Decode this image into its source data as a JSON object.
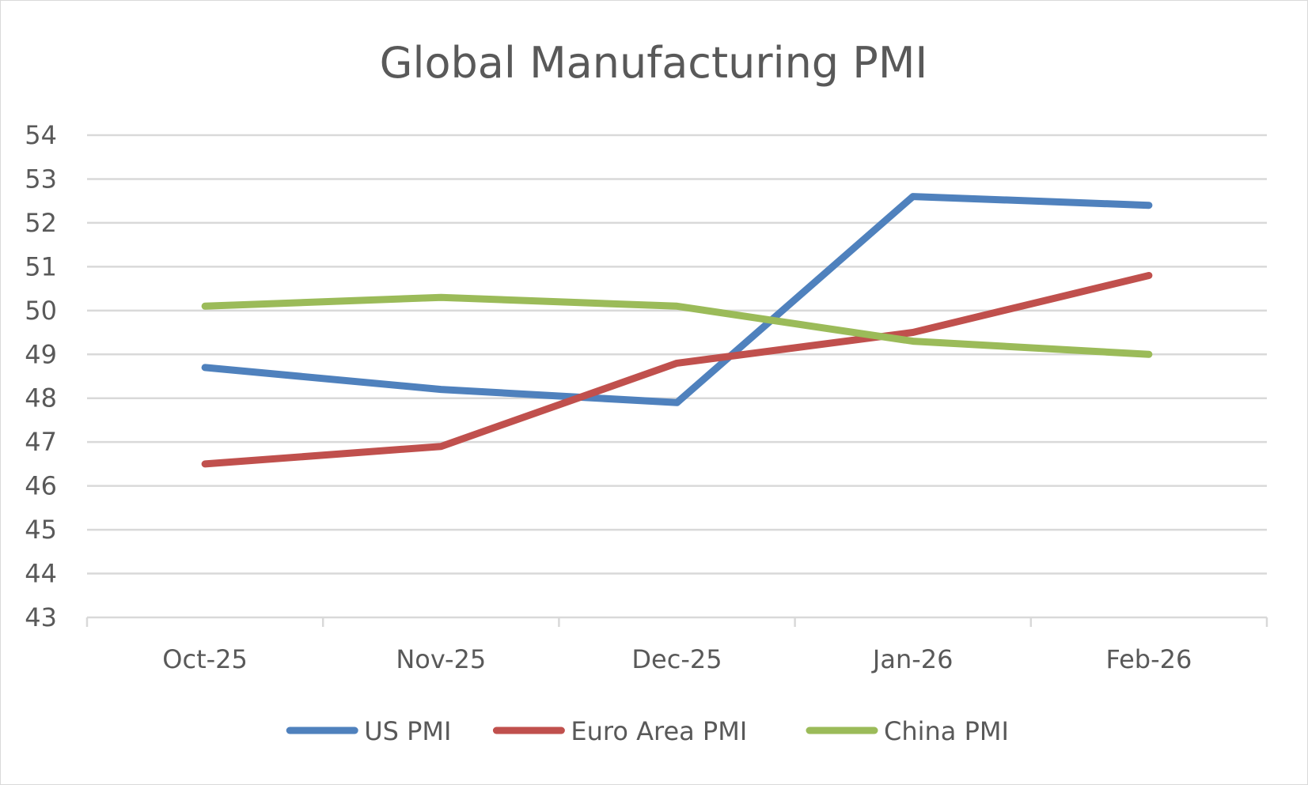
{
  "chart_data": {
    "type": "line",
    "title": "Global Manufacturing PMI",
    "xlabel": "",
    "ylabel": "",
    "categories": [
      "Oct-25",
      "Nov-25",
      "Dec-25",
      "Jan-26",
      "Feb-26"
    ],
    "ylim": [
      43,
      54
    ],
    "yticks": [
      "43",
      "44",
      "45",
      "46",
      "47",
      "48",
      "49",
      "50",
      "51",
      "52",
      "53",
      "54"
    ],
    "grid": true,
    "legend_position": "bottom",
    "series": [
      {
        "name": "US PMI",
        "color": "#4f81bd",
        "values": [
          48.7,
          48.2,
          47.9,
          52.6,
          52.4
        ]
      },
      {
        "name": "Euro Area PMI",
        "color": "#c0504d",
        "values": [
          46.5,
          46.9,
          48.8,
          49.5,
          50.8
        ]
      },
      {
        "name": "China PMI",
        "color": "#9bbb59",
        "values": [
          50.1,
          50.3,
          50.1,
          49.3,
          49.0
        ]
      }
    ]
  }
}
